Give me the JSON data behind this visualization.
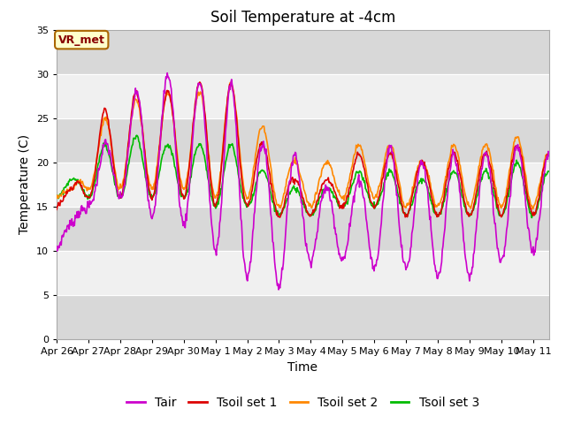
{
  "title": "Soil Temperature at -4cm",
  "xlabel": "Time",
  "ylabel": "Temperature (C)",
  "ylim": [
    0,
    35
  ],
  "background_color": "#ffffff",
  "plot_bg_light": "#f0f0f0",
  "plot_bg_dark": "#d8d8d8",
  "colors": {
    "Tair": "#cc00cc",
    "Tsoil1": "#dd0000",
    "Tsoil2": "#ff8800",
    "Tsoil3": "#00bb00"
  },
  "legend_labels": [
    "Tair",
    "Tsoil set 1",
    "Tsoil set 2",
    "Tsoil set 3"
  ],
  "xtick_labels": [
    "Apr 26",
    "Apr 27",
    "Apr 28",
    "Apr 29",
    "Apr 30",
    "May 1",
    "May 2",
    "May 3",
    "May 4",
    "May 5",
    "May 6",
    "May 7",
    "May 8",
    "May 9",
    "May 10",
    "May 11"
  ],
  "annotation_text": "VR_met",
  "title_fontsize": 12,
  "label_fontsize": 10,
  "tick_fontsize": 8,
  "legend_fontsize": 10,
  "line_width": 1.2
}
